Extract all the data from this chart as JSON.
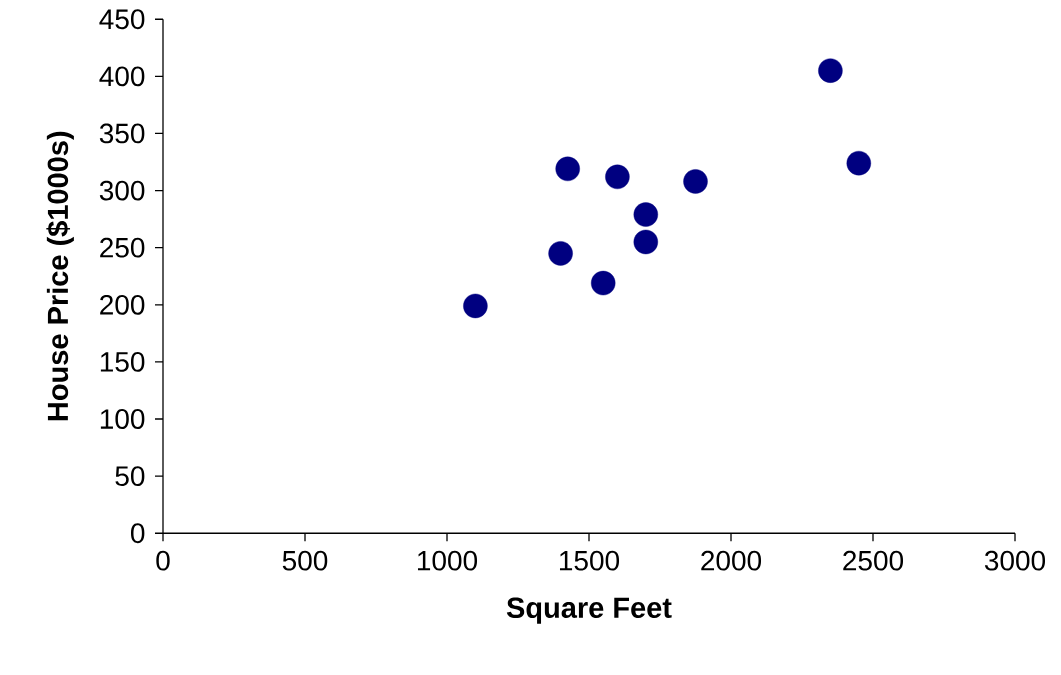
{
  "chart_data": {
    "type": "scatter",
    "xlabel": "Square Feet",
    "ylabel": "House Price ($1000s)",
    "x": [
      1400,
      1600,
      1700,
      1875,
      1100,
      1550,
      2350,
      2450,
      1425,
      1700
    ],
    "values": [
      245,
      312,
      279,
      308,
      199,
      219,
      405,
      324,
      319,
      255
    ],
    "color": "#000080",
    "marker": "circle",
    "xlim": [
      0,
      3000
    ],
    "xticks": [
      0,
      500,
      1000,
      1500,
      2000,
      2500,
      3000
    ],
    "ylim": [
      0,
      450
    ],
    "yticks": [
      0,
      50,
      100,
      150,
      200,
      250,
      300,
      350,
      400,
      450
    ]
  }
}
